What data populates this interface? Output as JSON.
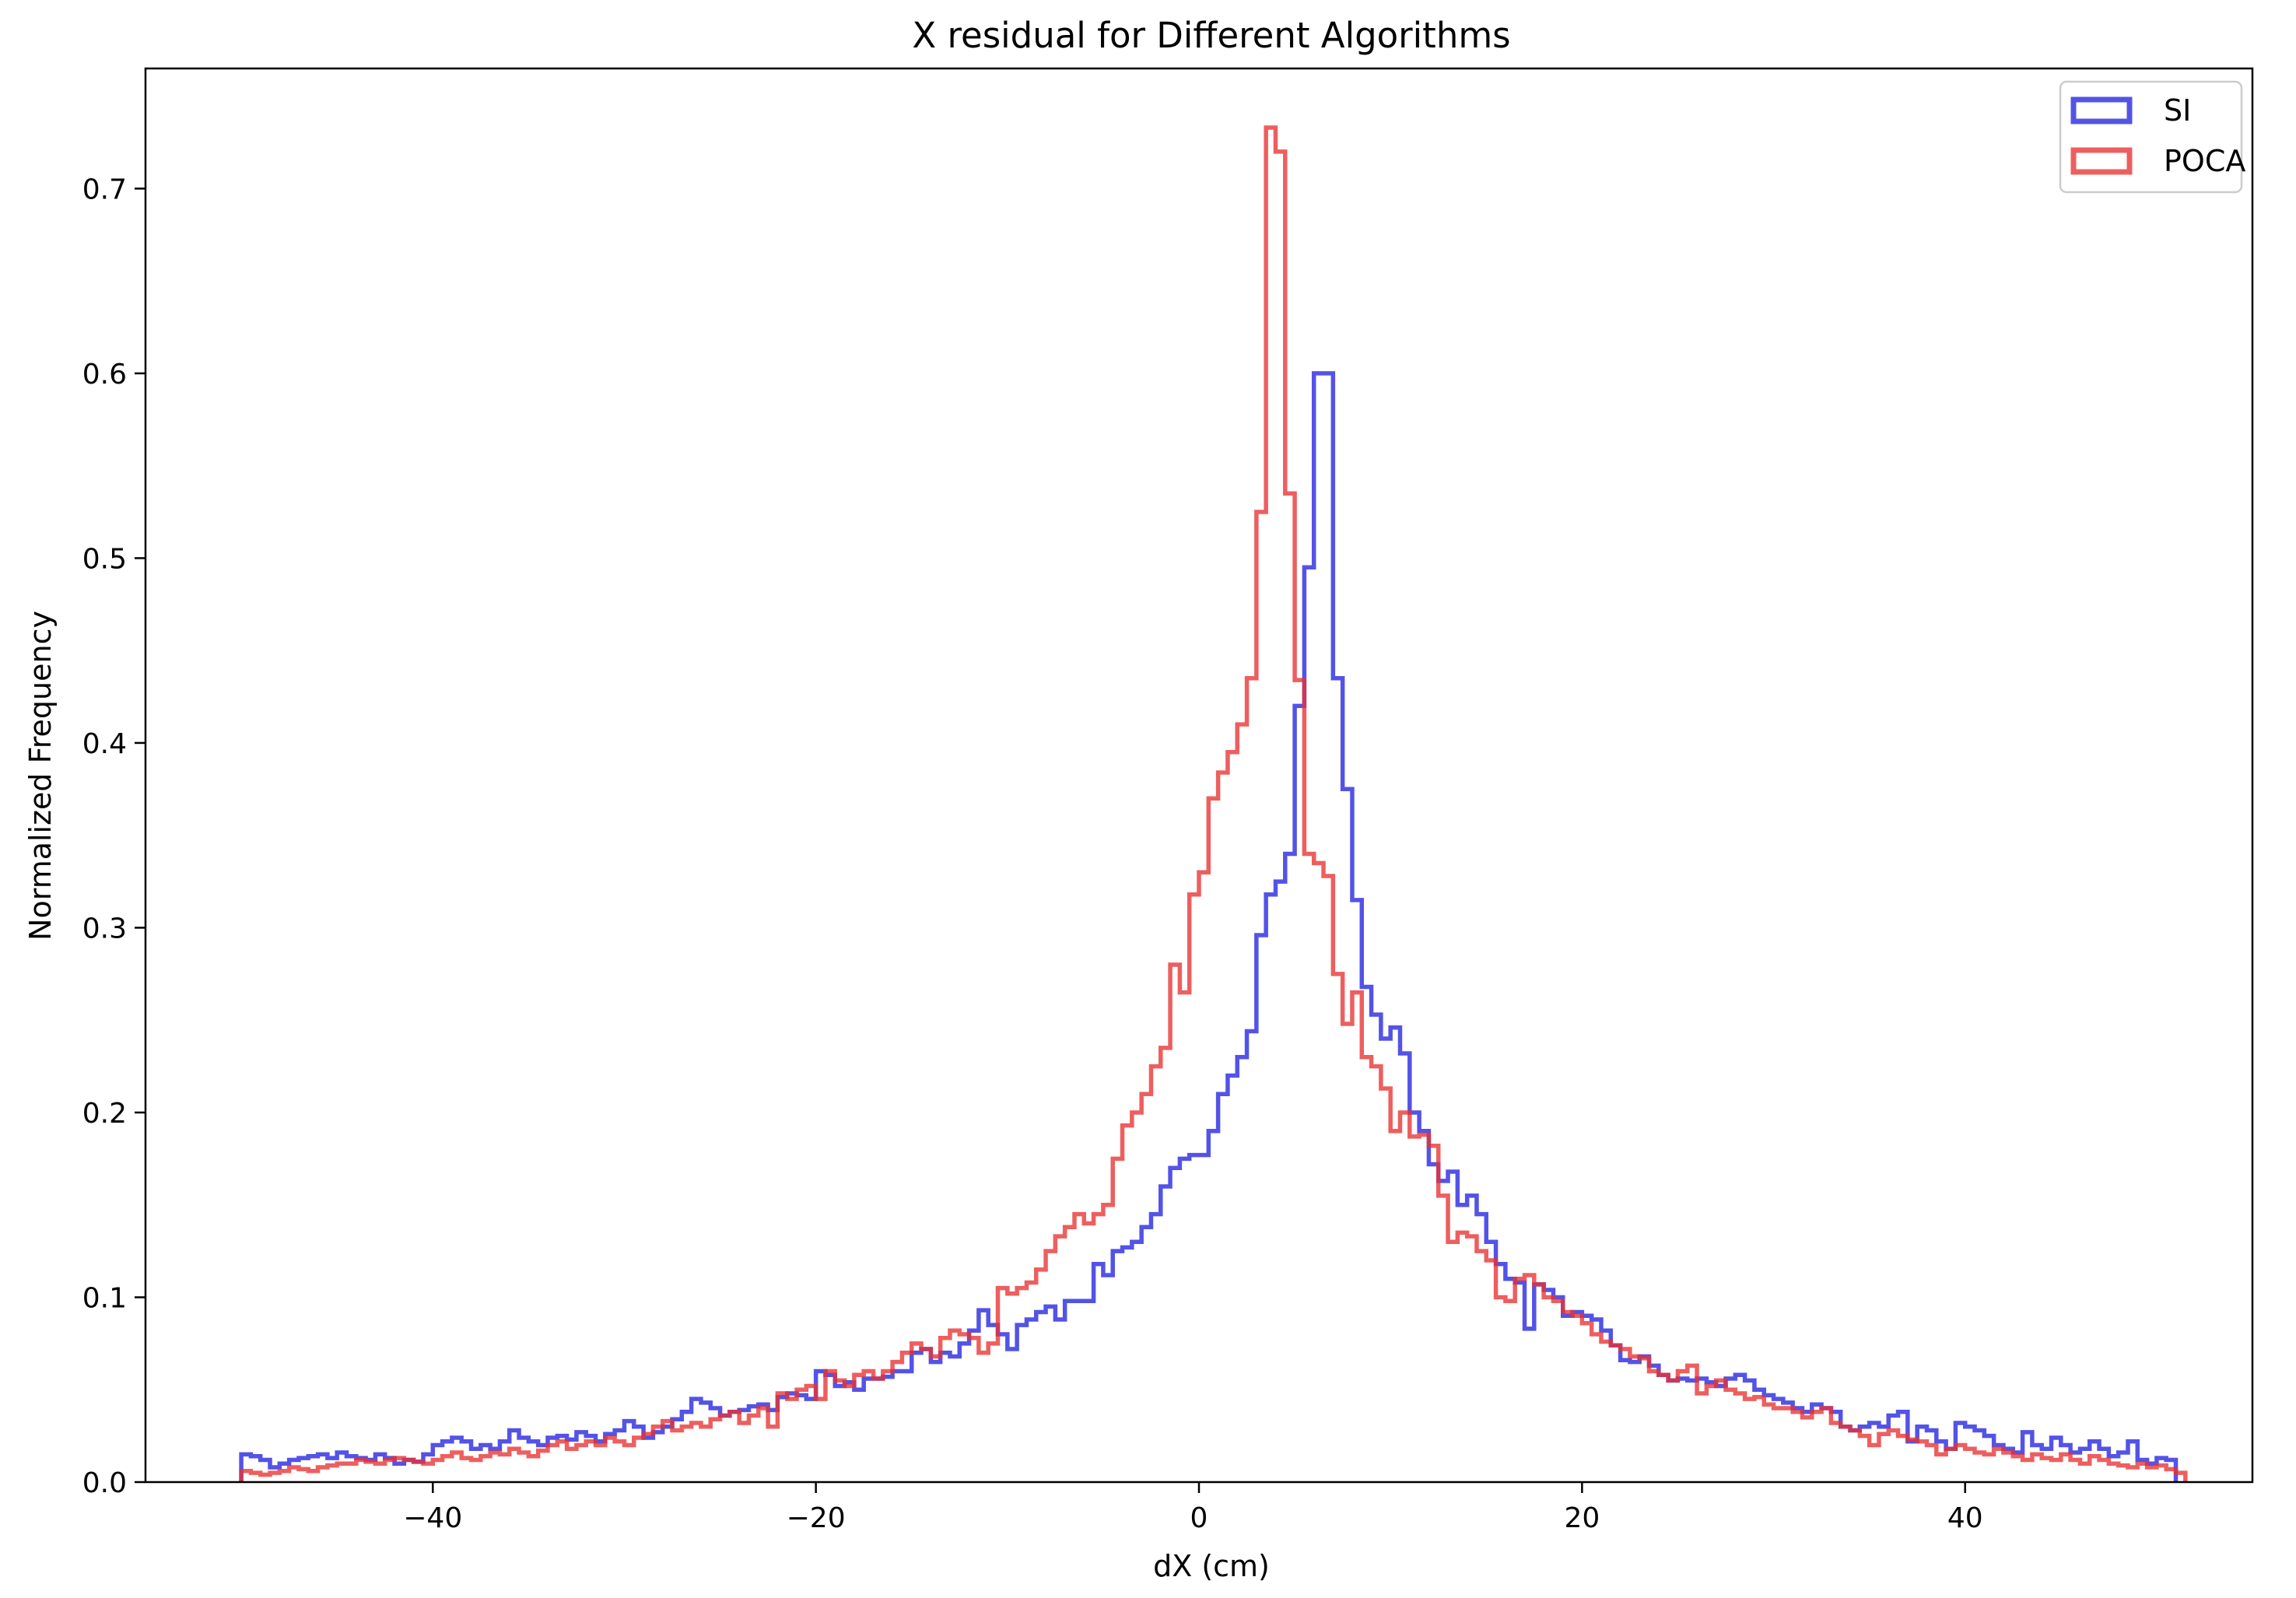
{
  "chart_data": {
    "type": "step",
    "title": "X residual for Different Algorithms",
    "xlabel": "dX (cm)",
    "ylabel": "Normalized Frequency",
    "xlim": [
      -55,
      55
    ],
    "ylim": [
      0,
      0.765
    ],
    "xticks": [
      -40,
      -20,
      0,
      20,
      40
    ],
    "xtick_labels": [
      "−40",
      "−20",
      "0",
      "20",
      "40"
    ],
    "yticks": [
      0.0,
      0.1,
      0.2,
      0.3,
      0.4,
      0.5,
      0.6,
      0.7
    ],
    "ytick_labels": [
      "0.0",
      "0.1",
      "0.2",
      "0.3",
      "0.4",
      "0.5",
      "0.6",
      "0.7"
    ],
    "legend_position": "top-right",
    "bin_start": -50,
    "bin_width": 0.5,
    "series": [
      {
        "name": "SI",
        "color": "#2323e0",
        "values": [
          0.015,
          0.014,
          0.012,
          0.008,
          0.01,
          0.012,
          0.013,
          0.014,
          0.015,
          0.013,
          0.016,
          0.014,
          0.013,
          0.012,
          0.015,
          0.013,
          0.01,
          0.012,
          0.011,
          0.015,
          0.02,
          0.022,
          0.024,
          0.022,
          0.018,
          0.02,
          0.018,
          0.022,
          0.028,
          0.024,
          0.022,
          0.02,
          0.024,
          0.025,
          0.023,
          0.027,
          0.025,
          0.022,
          0.026,
          0.028,
          0.033,
          0.03,
          0.024,
          0.027,
          0.03,
          0.034,
          0.038,
          0.045,
          0.043,
          0.04,
          0.036,
          0.038,
          0.039,
          0.041,
          0.042,
          0.039,
          0.046,
          0.048,
          0.047,
          0.045,
          0.06,
          0.058,
          0.052,
          0.054,
          0.05,
          0.056,
          0.056,
          0.057,
          0.06,
          0.06,
          0.07,
          0.072,
          0.065,
          0.07,
          0.068,
          0.075,
          0.082,
          0.093,
          0.085,
          0.08,
          0.072,
          0.085,
          0.088,
          0.092,
          0.095,
          0.088,
          0.098,
          0.098,
          0.098,
          0.118,
          0.112,
          0.125,
          0.127,
          0.13,
          0.138,
          0.145,
          0.16,
          0.17,
          0.175,
          0.177,
          0.177,
          0.19,
          0.21,
          0.22,
          0.23,
          0.244,
          0.296,
          0.318,
          0.325,
          0.34,
          0.42,
          0.495,
          0.6,
          0.6,
          0.435,
          0.375,
          0.315,
          0.268,
          0.253,
          0.24,
          0.246,
          0.232,
          0.2,
          0.19,
          0.172,
          0.163,
          0.168,
          0.15,
          0.155,
          0.145,
          0.13,
          0.118,
          0.11,
          0.108,
          0.083,
          0.107,
          0.104,
          0.1,
          0.09,
          0.092,
          0.09,
          0.088,
          0.082,
          0.074,
          0.066,
          0.065,
          0.068,
          0.063,
          0.058,
          0.055,
          0.056,
          0.055,
          0.056,
          0.054,
          0.052,
          0.056,
          0.058,
          0.055,
          0.05,
          0.047,
          0.045,
          0.043,
          0.04,
          0.038,
          0.042,
          0.04,
          0.038,
          0.03,
          0.028,
          0.03,
          0.032,
          0.03,
          0.036,
          0.038,
          0.022,
          0.03,
          0.028,
          0.022,
          0.018,
          0.032,
          0.03,
          0.028,
          0.025,
          0.02,
          0.018,
          0.016,
          0.027,
          0.02,
          0.018,
          0.024,
          0.02,
          0.016,
          0.018,
          0.022,
          0.018,
          0.014,
          0.016,
          0.022,
          0.012,
          0.01,
          0.013,
          0.012
        ]
      },
      {
        "name": "POCA",
        "color": "#e83232",
        "values": [
          0.006,
          0.005,
          0.004,
          0.005,
          0.006,
          0.008,
          0.007,
          0.006,
          0.008,
          0.009,
          0.01,
          0.01,
          0.012,
          0.011,
          0.01,
          0.012,
          0.013,
          0.012,
          0.011,
          0.01,
          0.012,
          0.014,
          0.016,
          0.013,
          0.012,
          0.014,
          0.016,
          0.015,
          0.018,
          0.016,
          0.014,
          0.017,
          0.02,
          0.022,
          0.018,
          0.02,
          0.022,
          0.02,
          0.024,
          0.022,
          0.02,
          0.024,
          0.026,
          0.03,
          0.033,
          0.028,
          0.03,
          0.032,
          0.03,
          0.034,
          0.036,
          0.038,
          0.032,
          0.036,
          0.04,
          0.03,
          0.048,
          0.045,
          0.05,
          0.052,
          0.045,
          0.06,
          0.055,
          0.052,
          0.058,
          0.06,
          0.056,
          0.06,
          0.065,
          0.07,
          0.075,
          0.072,
          0.068,
          0.078,
          0.082,
          0.08,
          0.078,
          0.07,
          0.075,
          0.105,
          0.102,
          0.105,
          0.108,
          0.115,
          0.125,
          0.133,
          0.138,
          0.145,
          0.14,
          0.145,
          0.15,
          0.175,
          0.193,
          0.2,
          0.21,
          0.225,
          0.235,
          0.28,
          0.265,
          0.318,
          0.33,
          0.37,
          0.384,
          0.395,
          0.41,
          0.435,
          0.525,
          0.733,
          0.72,
          0.535,
          0.434,
          0.34,
          0.335,
          0.328,
          0.275,
          0.248,
          0.265,
          0.23,
          0.225,
          0.213,
          0.19,
          0.2,
          0.187,
          0.188,
          0.182,
          0.155,
          0.13,
          0.135,
          0.133,
          0.125,
          0.12,
          0.1,
          0.098,
          0.11,
          0.112,
          0.107,
          0.1,
          0.098,
          0.092,
          0.09,
          0.086,
          0.08,
          0.076,
          0.074,
          0.072,
          0.068,
          0.067,
          0.06,
          0.058,
          0.055,
          0.06,
          0.063,
          0.048,
          0.052,
          0.055,
          0.05,
          0.048,
          0.045,
          0.046,
          0.042,
          0.04,
          0.04,
          0.038,
          0.035,
          0.038,
          0.04,
          0.032,
          0.03,
          0.028,
          0.025,
          0.02,
          0.026,
          0.028,
          0.025,
          0.023,
          0.022,
          0.02,
          0.015,
          0.018,
          0.02,
          0.018,
          0.016,
          0.015,
          0.018,
          0.016,
          0.014,
          0.012,
          0.015,
          0.013,
          0.012,
          0.015,
          0.012,
          0.01,
          0.014,
          0.012,
          0.01,
          0.009,
          0.008,
          0.01,
          0.008,
          0.009,
          0.007,
          0.005
        ]
      }
    ]
  }
}
